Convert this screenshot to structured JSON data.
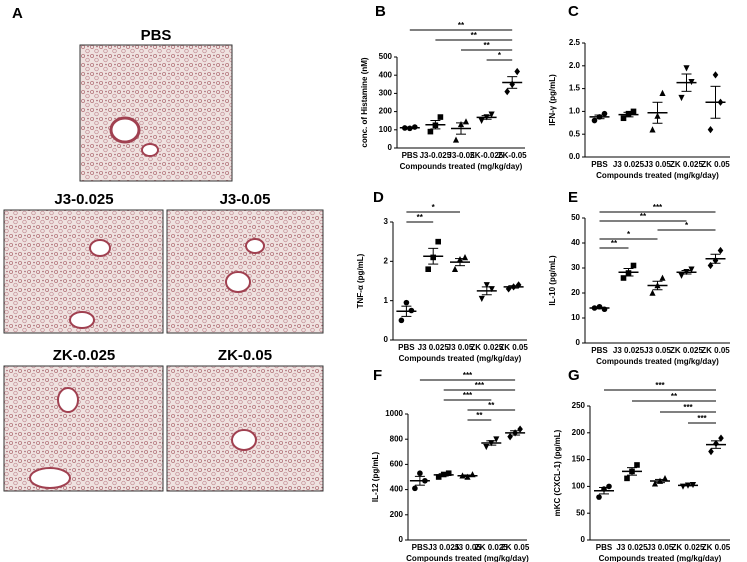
{
  "panel_a": {
    "label": "A",
    "images": [
      "PBS",
      "J3-0.025",
      "J3-0.05",
      "ZK-0.025",
      "ZK-0.05"
    ]
  },
  "chart_data": [
    {
      "type": "dotplot",
      "label": "B",
      "ylabel": "conc. of Histamine (nM)",
      "xlabel": "Compounds treated (mg/kg/day)",
      "categories": [
        "PBS",
        "J3-0.025",
        "J3-0.05",
        "ZK-0.025",
        "ZK-0.05"
      ],
      "markers": [
        "circle",
        "square",
        "triangle",
        "triangle-down",
        "diamond"
      ],
      "color": "#000000",
      "points": [
        [
          110,
          115,
          108
        ],
        [
          90,
          170,
          125
        ],
        [
          45,
          145,
          130
        ],
        [
          150,
          185,
          170
        ],
        [
          310,
          420,
          350
        ]
      ],
      "means": [
        111,
        128,
        107,
        168,
        360
      ],
      "errors": [
        4,
        23,
        31,
        10,
        32
      ],
      "ylim": [
        0,
        500
      ],
      "yticks": [
        0,
        100,
        200,
        300,
        400,
        500
      ],
      "brackets": [
        {
          "from": "PBS",
          "to": "ZK-0.05",
          "label": "**"
        },
        {
          "from": "J3-0.025",
          "to": "ZK-0.05",
          "label": "**"
        },
        {
          "from": "J3-0.05",
          "to": "ZK-0.05",
          "label": "**"
        },
        {
          "from": "ZK-0.025",
          "to": "ZK-0.05",
          "label": "*"
        }
      ]
    },
    {
      "type": "dotplot",
      "label": "C",
      "ylabel": "IFN-γ (pg/mL)",
      "xlabel": "Compounds treated (mg/kg/day)",
      "categories": [
        "PBS",
        "J3 0.025",
        "J3 0.05",
        "ZK 0.025",
        "ZK 0.05"
      ],
      "markers": [
        "circle",
        "square",
        "triangle",
        "triangle-down",
        "diamond"
      ],
      "color": "#000000",
      "points": [
        [
          0.8,
          0.95,
          0.88
        ],
        [
          0.85,
          1.0,
          0.95
        ],
        [
          0.6,
          1.4,
          0.9
        ],
        [
          1.3,
          1.65,
          1.95
        ],
        [
          0.6,
          1.2,
          1.8
        ]
      ],
      "means": [
        0.88,
        0.93,
        0.97,
        1.63,
        1.2
      ],
      "errors": [
        0.04,
        0.05,
        0.23,
        0.19,
        0.35
      ],
      "ylim": [
        0,
        2.5
      ],
      "yticks": [
        {
          "value": 0,
          "label": "0.0"
        },
        0.5,
        {
          "value": 1,
          "label": "1.0"
        },
        1.5,
        {
          "value": 2,
          "label": "2.0"
        },
        2.5
      ],
      "brackets": []
    },
    {
      "type": "dotplot",
      "label": "D",
      "ylabel": "TNF-α (pg/mL)",
      "xlabel": "Compounds treated (mg/kg/day)",
      "categories": [
        "PBS",
        "J3 0.025",
        "J3 0.05",
        "ZK 0.025",
        "ZK 0.05"
      ],
      "markers": [
        "circle",
        "square",
        "triangle",
        "triangle-down",
        "diamond"
      ],
      "color": "#000000",
      "points": [
        [
          0.5,
          0.75,
          0.95
        ],
        [
          1.8,
          2.5,
          2.1
        ],
        [
          1.8,
          2.1,
          2.05
        ],
        [
          1.05,
          1.3,
          1.4
        ],
        [
          1.3,
          1.4,
          1.35
        ]
      ],
      "means": [
        0.73,
        2.13,
        1.98,
        1.25,
        1.35
      ],
      "errors": [
        0.13,
        0.2,
        0.09,
        0.1,
        0.03
      ],
      "ylim": [
        0,
        3
      ],
      "yticks": [
        0,
        1,
        2,
        3
      ],
      "brackets": [
        {
          "from": "PBS",
          "to": "J3 0.05",
          "label": "*"
        },
        {
          "from": "PBS",
          "to": "J3 0.025",
          "label": "**"
        }
      ]
    },
    {
      "type": "dotplot",
      "label": "E",
      "ylabel": "IL-10 (pg/mL)",
      "xlabel": "Compounds treated (mg/kg/day)",
      "categories": [
        "PBS",
        "J3 0.025",
        "J3 0.05",
        "ZK 0.025",
        "ZK 0.05"
      ],
      "markers": [
        "circle",
        "square",
        "triangle",
        "triangle-down",
        "diamond"
      ],
      "color": "#000000",
      "points": [
        [
          14,
          13.5,
          14.5
        ],
        [
          26,
          31,
          28
        ],
        [
          20,
          26,
          23
        ],
        [
          27,
          29.5,
          28.5
        ],
        [
          31,
          37,
          33
        ]
      ],
      "means": [
        14,
        28.3,
        23,
        28.3,
        33.7
      ],
      "errors": [
        0.3,
        1.5,
        1.7,
        0.7,
        1.8
      ],
      "ylim": [
        0,
        50
      ],
      "yticks": [
        0,
        10,
        20,
        30,
        40,
        50
      ],
      "brackets": [
        {
          "from": "PBS",
          "to": "ZK 0.05",
          "label": "***"
        },
        {
          "from": "PBS",
          "to": "ZK 0.025",
          "label": "**"
        },
        {
          "from": "J3 0.05",
          "to": "ZK 0.05",
          "label": "*"
        },
        {
          "from": "PBS",
          "to": "J3 0.05",
          "label": "*"
        },
        {
          "from": "PBS",
          "to": "J3 0.025",
          "label": "**"
        }
      ]
    },
    {
      "type": "dotplot",
      "label": "F",
      "ylabel": "IL-12 (pg/mL)",
      "xlabel": "Compounds treated (mg/kg/day)",
      "categories": [
        "PBS",
        "J3 0.025",
        "J3 0.05",
        "ZK 0.025",
        "ZK 0.05"
      ],
      "markers": [
        "circle",
        "square",
        "triangle",
        "triangle-down",
        "diamond"
      ],
      "color": "#000000",
      "points": [
        [
          410,
          470,
          530
        ],
        [
          500,
          530,
          520
        ],
        [
          510,
          520,
          500
        ],
        [
          740,
          800,
          770
        ],
        [
          820,
          880,
          850
        ]
      ],
      "means": [
        470,
        517,
        510,
        770,
        850
      ],
      "errors": [
        35,
        9,
        6,
        17,
        17
      ],
      "ylim": [
        0,
        1000
      ],
      "yticks": [
        0,
        200,
        400,
        600,
        800,
        1000
      ],
      "brackets": [
        {
          "from": "PBS",
          "to": "ZK 0.05",
          "label": "***"
        },
        {
          "from": "J3 0.025",
          "to": "ZK 0.05",
          "label": "***"
        },
        {
          "from": "J3 0.025",
          "to": "ZK 0.025",
          "label": "***"
        },
        {
          "from": "J3 0.05",
          "to": "ZK 0.05",
          "label": "**"
        },
        {
          "from": "J3 0.05",
          "to": "ZK 0.025",
          "label": "**"
        }
      ]
    },
    {
      "type": "dotplot",
      "label": "G",
      "ylabel": "mKC (CXCL-1) (pg/mL)",
      "xlabel": "Compounds treated (mg/kg/day)",
      "categories": [
        "PBS",
        "J3 0.025",
        "J3 0.05",
        "ZK 0.025",
        "ZK 0.05"
      ],
      "markers": [
        "circle",
        "square",
        "triangle",
        "triangle-down",
        "diamond"
      ],
      "color": "#000000",
      "points": [
        [
          80,
          100,
          95
        ],
        [
          115,
          140,
          128
        ],
        [
          105,
          115,
          110
        ],
        [
          100,
          103,
          102
        ],
        [
          165,
          190,
          180
        ]
      ],
      "means": [
        92,
        128,
        110,
        102,
        178
      ],
      "errors": [
        6,
        7,
        3,
        1,
        7
      ],
      "ylim": [
        0,
        250
      ],
      "yticks": [
        0,
        50,
        100,
        150,
        200,
        250
      ],
      "brackets": [
        {
          "from": "PBS",
          "to": "ZK 0.05",
          "label": "***"
        },
        {
          "from": "J3 0.025",
          "to": "ZK 0.05",
          "label": "**"
        },
        {
          "from": "J3 0.05",
          "to": "ZK 0.05",
          "label": "***"
        },
        {
          "from": "ZK 0.025",
          "to": "ZK 0.05",
          "label": "***"
        }
      ]
    }
  ]
}
